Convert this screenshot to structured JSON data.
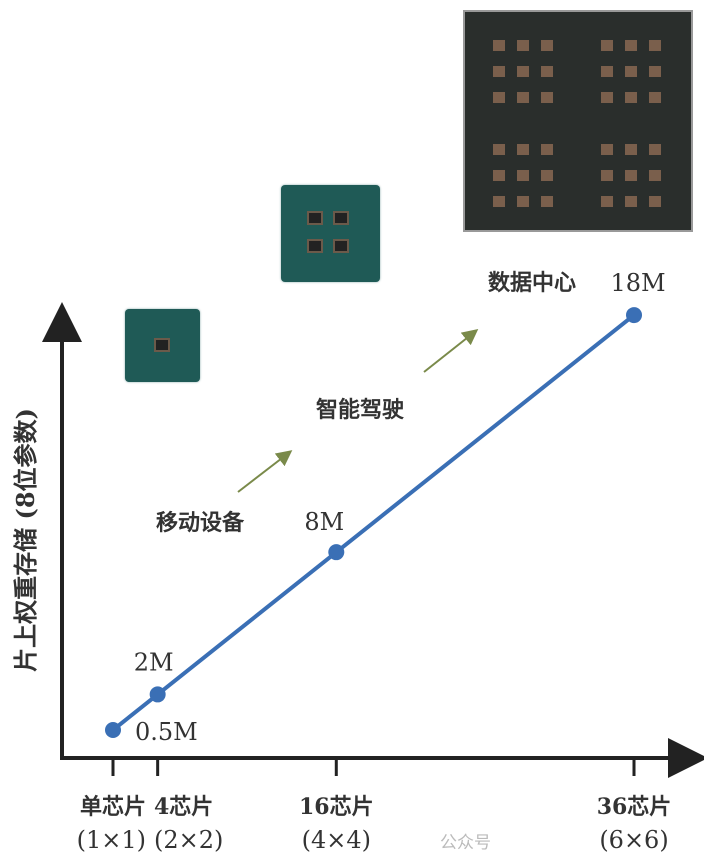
{
  "chart_data": {
    "type": "line",
    "ylabel": "片上权重存储 (8位参数)",
    "xlabel": "",
    "x": [
      1,
      4,
      16,
      36
    ],
    "values": [
      0.5,
      2,
      8,
      18
    ],
    "data_labels": [
      "0.5M",
      "2M",
      "8M",
      "18M"
    ],
    "x_tick_labels": [
      [
        "单芯片",
        "(1×1)"
      ],
      [
        "4芯片",
        "(2×2)"
      ],
      [
        "16芯片",
        "(4×4)"
      ],
      [
        "36芯片",
        "(6×6)"
      ]
    ],
    "annotations": [
      "移动设备",
      "智能驾驶",
      "数据中心"
    ],
    "line_color": "#3a6fb5",
    "arrow_color": "#7a8a4a",
    "grid": false
  },
  "watermark": "公众号"
}
